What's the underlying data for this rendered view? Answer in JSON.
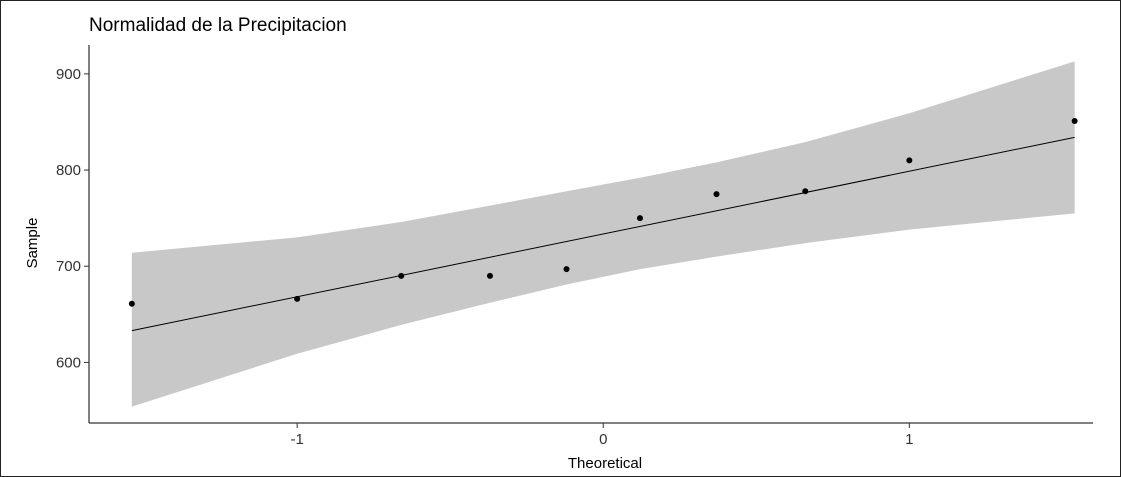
{
  "chart_data": {
    "type": "scatter",
    "title": "Normalidad de la Precipitacion",
    "xlabel": "Theoretical",
    "ylabel": "Sample",
    "xlim": [
      -1.68,
      1.6
    ],
    "ylim": [
      537,
      930
    ],
    "x_ticks": [
      -1,
      0,
      1
    ],
    "x_tick_labels": [
      "-1",
      "0",
      "1"
    ],
    "y_ticks": [
      600,
      700,
      800,
      900
    ],
    "y_tick_labels": [
      "600",
      "700",
      "800",
      "900"
    ],
    "grid": false,
    "legend": "none",
    "points": {
      "x": [
        -1.54,
        -1.0,
        -0.66,
        -0.37,
        -0.12,
        0.12,
        0.37,
        0.66,
        1.0,
        1.54
      ],
      "y": [
        661,
        666,
        690,
        690,
        697,
        750,
        775,
        778,
        810,
        851
      ]
    },
    "reference_line": {
      "x": [
        -1.54,
        1.54
      ],
      "y": [
        633,
        834
      ]
    },
    "confidence_band": {
      "x": [
        -1.54,
        -1.0,
        -0.66,
        -0.37,
        -0.12,
        0.12,
        0.37,
        0.66,
        1.0,
        1.54
      ],
      "lower": [
        554,
        609,
        639,
        662,
        681,
        697,
        710,
        724,
        738,
        755
      ],
      "upper": [
        714,
        730,
        746,
        763,
        778,
        792,
        808,
        829,
        859,
        913
      ]
    },
    "colors": {
      "points": "#000000",
      "line": "#000000",
      "band": "#c8c8c8",
      "axis": "#000000"
    }
  }
}
